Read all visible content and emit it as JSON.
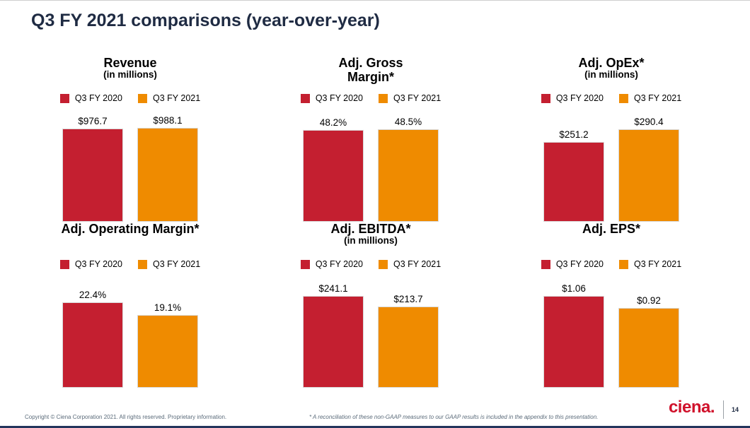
{
  "slide": {
    "title": "Q3 FY 2021 comparisons (year-over-year)",
    "footer_copyright": "Copyright © Ciena Corporation 2021. All rights reserved. Proprietary information.",
    "footnote": "* A reconciliation of these non-GAAP measures to our GAAP results is included in the appendix to this presentation.",
    "logo_text": "ciena.",
    "page_number": "14"
  },
  "legend": {
    "fy2020": "Q3 FY 2020",
    "fy2021": "Q3 FY 2021"
  },
  "colors": {
    "fy2020_red": "#c41f30",
    "fy2021_orange": "#ef8b00",
    "title_navy": "#1f2b43",
    "logo_red": "#d0112b",
    "footer_gray": "#5b6b7a",
    "bottom_bar_navy": "#23355c"
  },
  "chart_data": [
    {
      "type": "bar",
      "title": "Revenue",
      "subtitle": "(in millions)",
      "categories": [
        "Q3 FY 2020",
        "Q3 FY 2021"
      ],
      "values": [
        976.7,
        988.1
      ],
      "labels": [
        "$976.7",
        "$988.1"
      ],
      "ylim": [
        0,
        1000
      ],
      "legend_position": "top",
      "grid": false
    },
    {
      "type": "bar",
      "title": "Adj. Gross\nMargin*",
      "subtitle": "",
      "categories": [
        "Q3 FY 2020",
        "Q3 FY 2021"
      ],
      "values": [
        48.2,
        48.5
      ],
      "labels": [
        "48.2%",
        "48.5%"
      ],
      "ylim": [
        0,
        50
      ],
      "legend_position": "top",
      "grid": false
    },
    {
      "type": "bar",
      "title": "Adj. OpEx*",
      "subtitle": "(in millions)",
      "categories": [
        "Q3 FY 2020",
        "Q3 FY 2021"
      ],
      "values": [
        251.2,
        290.4
      ],
      "labels": [
        "$251.2",
        "$290.4"
      ],
      "ylim": [
        0,
        300
      ],
      "legend_position": "top",
      "grid": false
    },
    {
      "type": "bar",
      "title": "Adj. Operating Margin*",
      "subtitle": "",
      "categories": [
        "Q3 FY 2020",
        "Q3 FY 2021"
      ],
      "values": [
        22.4,
        19.1
      ],
      "labels": [
        "22.4%",
        "19.1%"
      ],
      "ylim": [
        0,
        25
      ],
      "legend_position": "top",
      "grid": false
    },
    {
      "type": "bar",
      "title": "Adj. EBITDA*",
      "subtitle": "(in millions)",
      "categories": [
        "Q3 FY 2020",
        "Q3 FY 2021"
      ],
      "values": [
        241.1,
        213.7
      ],
      "labels": [
        "$241.1",
        "$213.7"
      ],
      "ylim": [
        0,
        250
      ],
      "legend_position": "top",
      "grid": false
    },
    {
      "type": "bar",
      "title": "Adj. EPS*",
      "subtitle": "",
      "categories": [
        "Q3 FY 2020",
        "Q3 FY 2021"
      ],
      "values": [
        1.06,
        0.92
      ],
      "labels": [
        "$1.06",
        "$0.92"
      ],
      "ylim": [
        0,
        1.1
      ],
      "legend_position": "top",
      "grid": false
    }
  ]
}
